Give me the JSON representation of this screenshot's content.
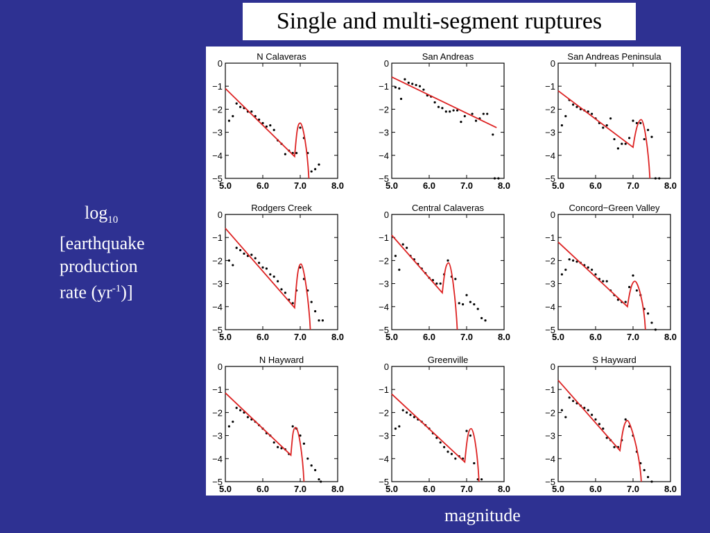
{
  "page": {
    "title": "Single and multi-segment ruptures",
    "ylabel": {
      "line1_base": "log",
      "line1_sub": "10",
      "line2": "[earthquake",
      "line3": "production",
      "line4_a": "rate (yr",
      "line4_sup": "-1",
      "line4_b": ")]"
    },
    "xlabel": "magnitude",
    "colors": {
      "background": "#2e3192",
      "fit_line": "#dd2222",
      "points": "#000000"
    }
  },
  "chart_data": [
    {
      "type": "scatter",
      "title": "N  Calaveras",
      "xlim": [
        5.0,
        8.0
      ],
      "ylim": [
        -5,
        0
      ],
      "xticks": [
        "5.0",
        "6.0",
        "7.0",
        "8.0"
      ],
      "yticks": [
        "0",
        "−1",
        "−2",
        "−3",
        "−4",
        "−5"
      ],
      "points": [
        [
          5.1,
          -2.5
        ],
        [
          5.2,
          -2.3
        ],
        [
          5.3,
          -1.75
        ],
        [
          5.4,
          -1.9
        ],
        [
          5.5,
          -1.95
        ],
        [
          5.6,
          -2.1
        ],
        [
          5.7,
          -2.1
        ],
        [
          5.8,
          -2.3
        ],
        [
          5.9,
          -2.45
        ],
        [
          6.0,
          -2.6
        ],
        [
          6.1,
          -2.75
        ],
        [
          6.2,
          -2.7
        ],
        [
          6.3,
          -2.9
        ],
        [
          6.4,
          -3.35
        ],
        [
          6.5,
          -3.5
        ],
        [
          6.6,
          -3.95
        ],
        [
          6.7,
          -3.8
        ],
        [
          6.8,
          -3.9
        ],
        [
          6.9,
          -3.9
        ],
        [
          7.0,
          -2.8
        ],
        [
          7.1,
          -3.25
        ],
        [
          7.2,
          -3.9
        ],
        [
          7.3,
          -4.7
        ],
        [
          7.4,
          -4.6
        ],
        [
          7.5,
          -4.4
        ]
      ],
      "fit": {
        "start": [
          5.0,
          -1.1
        ],
        "break": [
          6.85,
          -4.05
        ],
        "peak": [
          7.0,
          -2.6
        ],
        "end": [
          7.23,
          -5.0
        ]
      }
    },
    {
      "type": "scatter",
      "title": "San  Andreas",
      "xlim": [
        5.0,
        8.0
      ],
      "ylim": [
        -5,
        0
      ],
      "xticks": [
        "5.0",
        "6.0",
        "7.0",
        "8.0"
      ],
      "yticks": [
        "0",
        "−1",
        "−2",
        "−3",
        "−4",
        "−5"
      ],
      "points": [
        [
          5.1,
          -1.05
        ],
        [
          5.2,
          -1.1
        ],
        [
          5.25,
          -1.55
        ],
        [
          5.35,
          -0.7
        ],
        [
          5.45,
          -0.85
        ],
        [
          5.55,
          -0.9
        ],
        [
          5.65,
          -0.95
        ],
        [
          5.75,
          -1.0
        ],
        [
          5.85,
          -1.15
        ],
        [
          5.95,
          -1.4
        ],
        [
          6.05,
          -1.45
        ],
        [
          6.15,
          -1.7
        ],
        [
          6.25,
          -1.9
        ],
        [
          6.35,
          -1.95
        ],
        [
          6.45,
          -2.1
        ],
        [
          6.55,
          -2.1
        ],
        [
          6.65,
          -2.05
        ],
        [
          6.75,
          -2.05
        ],
        [
          6.85,
          -2.55
        ],
        [
          6.95,
          -2.3
        ],
        [
          7.15,
          -2.2
        ],
        [
          7.25,
          -2.5
        ],
        [
          7.35,
          -2.4
        ],
        [
          7.45,
          -2.2
        ],
        [
          7.55,
          -2.2
        ],
        [
          7.7,
          -3.1
        ],
        [
          7.75,
          -5.0
        ],
        [
          7.85,
          -5.0
        ]
      ],
      "fit": {
        "start": [
          5.0,
          -0.6
        ],
        "break": null,
        "peak": null,
        "end": [
          7.8,
          -2.8
        ]
      }
    },
    {
      "type": "scatter",
      "title": "San  Andreas  Peninsula",
      "xlim": [
        5.0,
        8.0
      ],
      "ylim": [
        -5,
        0
      ],
      "xticks": [
        "5.0",
        "6.0",
        "7.0",
        "8.0"
      ],
      "yticks": [
        "0",
        "−1",
        "−2",
        "−3",
        "−4",
        "−5"
      ],
      "points": [
        [
          5.1,
          -2.7
        ],
        [
          5.2,
          -2.3
        ],
        [
          5.3,
          -1.6
        ],
        [
          5.4,
          -1.8
        ],
        [
          5.5,
          -1.9
        ],
        [
          5.6,
          -2.0
        ],
        [
          5.7,
          -2.05
        ],
        [
          5.8,
          -2.1
        ],
        [
          5.9,
          -2.2
        ],
        [
          6.0,
          -2.4
        ],
        [
          6.1,
          -2.6
        ],
        [
          6.2,
          -2.8
        ],
        [
          6.3,
          -2.7
        ],
        [
          6.4,
          -2.4
        ],
        [
          6.5,
          -3.3
        ],
        [
          6.6,
          -3.7
        ],
        [
          6.7,
          -3.5
        ],
        [
          6.8,
          -3.5
        ],
        [
          6.9,
          -3.25
        ],
        [
          7.0,
          -2.5
        ],
        [
          7.1,
          -2.6
        ],
        [
          7.2,
          -2.6
        ],
        [
          7.3,
          -3.3
        ],
        [
          7.4,
          -2.9
        ],
        [
          7.5,
          -3.2
        ],
        [
          7.6,
          -5.0
        ],
        [
          7.7,
          -5.0
        ]
      ],
      "fit": {
        "start": [
          5.0,
          -1.2
        ],
        "break": [
          7.0,
          -3.65
        ],
        "peak": [
          7.22,
          -2.45
        ],
        "end": [
          7.45,
          -5.0
        ]
      }
    },
    {
      "type": "scatter",
      "title": "Rodgers  Creek",
      "xlim": [
        5.0,
        8.0
      ],
      "ylim": [
        -5,
        0
      ],
      "xticks": [
        "5.0",
        "6.0",
        "7.0",
        "8.0"
      ],
      "yticks": [
        "0",
        "−1",
        "−2",
        "−3",
        "−4",
        "−5"
      ],
      "points": [
        [
          5.1,
          -2.0
        ],
        [
          5.2,
          -2.2
        ],
        [
          5.3,
          -1.45
        ],
        [
          5.4,
          -1.55
        ],
        [
          5.5,
          -1.7
        ],
        [
          5.6,
          -1.8
        ],
        [
          5.7,
          -1.75
        ],
        [
          5.8,
          -1.9
        ],
        [
          5.9,
          -2.1
        ],
        [
          6.0,
          -2.3
        ],
        [
          6.1,
          -2.35
        ],
        [
          6.2,
          -2.6
        ],
        [
          6.3,
          -2.7
        ],
        [
          6.4,
          -2.9
        ],
        [
          6.5,
          -3.25
        ],
        [
          6.6,
          -3.4
        ],
        [
          6.7,
          -3.7
        ],
        [
          6.8,
          -3.85
        ],
        [
          6.9,
          -3.3
        ],
        [
          7.0,
          -2.3
        ],
        [
          7.1,
          -2.8
        ],
        [
          7.2,
          -3.3
        ],
        [
          7.3,
          -3.8
        ],
        [
          7.4,
          -4.2
        ],
        [
          7.5,
          -4.6
        ],
        [
          7.6,
          -4.6
        ]
      ],
      "fit": {
        "start": [
          5.0,
          -0.6
        ],
        "break": [
          6.85,
          -4.05
        ],
        "peak": [
          7.02,
          -2.15
        ],
        "end": [
          7.27,
          -5.0
        ]
      }
    },
    {
      "type": "scatter",
      "title": "Central  Calaveras",
      "xlim": [
        5.0,
        8.0
      ],
      "ylim": [
        -5,
        0
      ],
      "xticks": [
        "5.0",
        "6.0",
        "7.0",
        "8.0"
      ],
      "yticks": [
        "0",
        "−1",
        "−2",
        "−3",
        "−4",
        "−5"
      ],
      "points": [
        [
          5.1,
          -1.8
        ],
        [
          5.2,
          -2.4
        ],
        [
          5.3,
          -1.3
        ],
        [
          5.4,
          -1.45
        ],
        [
          5.5,
          -1.8
        ],
        [
          5.6,
          -1.95
        ],
        [
          5.7,
          -2.15
        ],
        [
          5.8,
          -2.35
        ],
        [
          5.9,
          -2.55
        ],
        [
          6.0,
          -2.75
        ],
        [
          6.1,
          -2.85
        ],
        [
          6.2,
          -3.0
        ],
        [
          6.3,
          -3.0
        ],
        [
          6.4,
          -2.6
        ],
        [
          6.5,
          -2.0
        ],
        [
          6.6,
          -2.7
        ],
        [
          6.7,
          -2.8
        ],
        [
          6.8,
          -3.85
        ],
        [
          6.9,
          -3.9
        ],
        [
          7.0,
          -3.5
        ],
        [
          7.1,
          -3.8
        ],
        [
          7.2,
          -3.9
        ],
        [
          7.3,
          -4.1
        ],
        [
          7.4,
          -4.5
        ],
        [
          7.5,
          -4.6
        ]
      ],
      "fit": {
        "start": [
          5.0,
          -0.9
        ],
        "break": [
          6.35,
          -3.4
        ],
        "peak": [
          6.52,
          -2.1
        ],
        "end": [
          6.75,
          -5.0
        ]
      }
    },
    {
      "type": "scatter",
      "title": "Concord−Green  Valley",
      "xlim": [
        5.0,
        8.0
      ],
      "ylim": [
        -5,
        0
      ],
      "xticks": [
        "5.0",
        "6.0",
        "7.0",
        "8.0"
      ],
      "yticks": [
        "0",
        "−1",
        "−2",
        "−3",
        "−4",
        "−5"
      ],
      "points": [
        [
          5.1,
          -2.6
        ],
        [
          5.2,
          -2.4
        ],
        [
          5.3,
          -1.95
        ],
        [
          5.4,
          -2.0
        ],
        [
          5.5,
          -2.05
        ],
        [
          5.6,
          -2.1
        ],
        [
          5.7,
          -2.2
        ],
        [
          5.8,
          -2.3
        ],
        [
          5.9,
          -2.4
        ],
        [
          6.0,
          -2.6
        ],
        [
          6.1,
          -2.8
        ],
        [
          6.2,
          -2.9
        ],
        [
          6.3,
          -2.9
        ],
        [
          6.4,
          -3.3
        ],
        [
          6.5,
          -3.5
        ],
        [
          6.6,
          -3.7
        ],
        [
          6.7,
          -3.8
        ],
        [
          6.8,
          -3.8
        ],
        [
          6.9,
          -3.15
        ],
        [
          7.0,
          -2.65
        ],
        [
          7.1,
          -3.3
        ],
        [
          7.2,
          -3.5
        ],
        [
          7.3,
          -4.1
        ],
        [
          7.4,
          -4.3
        ],
        [
          7.5,
          -4.7
        ],
        [
          7.6,
          -5.0
        ]
      ],
      "fit": {
        "start": [
          5.0,
          -1.2
        ],
        "break": [
          6.85,
          -4.0
        ],
        "peak": [
          7.05,
          -2.9
        ],
        "end": [
          7.33,
          -5.0
        ]
      }
    },
    {
      "type": "scatter",
      "title": "N  Hayward",
      "xlim": [
        5.0,
        8.0
      ],
      "ylim": [
        -5,
        0
      ],
      "xticks": [
        "5.0",
        "6.0",
        "7.0",
        "8.0"
      ],
      "yticks": [
        "0",
        "−1",
        "−2",
        "−3",
        "−4",
        "−5"
      ],
      "points": [
        [
          5.1,
          -2.6
        ],
        [
          5.2,
          -2.4
        ],
        [
          5.3,
          -1.8
        ],
        [
          5.4,
          -1.9
        ],
        [
          5.5,
          -2.0
        ],
        [
          5.6,
          -2.2
        ],
        [
          5.7,
          -2.3
        ],
        [
          5.8,
          -2.4
        ],
        [
          5.9,
          -2.55
        ],
        [
          6.0,
          -2.7
        ],
        [
          6.1,
          -2.9
        ],
        [
          6.2,
          -3.0
        ],
        [
          6.3,
          -3.3
        ],
        [
          6.4,
          -3.5
        ],
        [
          6.5,
          -3.55
        ],
        [
          6.6,
          -3.6
        ],
        [
          6.7,
          -3.8
        ],
        [
          6.8,
          -2.6
        ],
        [
          6.9,
          -2.7
        ],
        [
          7.0,
          -3.0
        ],
        [
          7.1,
          -3.35
        ],
        [
          7.2,
          -4.0
        ],
        [
          7.3,
          -4.3
        ],
        [
          7.4,
          -4.5
        ],
        [
          7.5,
          -4.9
        ],
        [
          7.55,
          -5.0
        ]
      ],
      "fit": {
        "start": [
          5.0,
          -1.15
        ],
        "break": [
          6.75,
          -3.85
        ],
        "peak": [
          6.88,
          -2.65
        ],
        "end": [
          7.1,
          -5.0
        ]
      }
    },
    {
      "type": "scatter",
      "title": "Greenville",
      "xlim": [
        5.0,
        8.0
      ],
      "ylim": [
        -5,
        0
      ],
      "xticks": [
        "5.0",
        "6.0",
        "7.0",
        "8.0"
      ],
      "yticks": [
        "0",
        "−1",
        "−2",
        "−3",
        "−4",
        "−5"
      ],
      "points": [
        [
          5.1,
          -2.7
        ],
        [
          5.2,
          -2.6
        ],
        [
          5.3,
          -1.9
        ],
        [
          5.4,
          -2.0
        ],
        [
          5.5,
          -2.1
        ],
        [
          5.6,
          -2.2
        ],
        [
          5.7,
          -2.3
        ],
        [
          5.8,
          -2.4
        ],
        [
          5.9,
          -2.55
        ],
        [
          6.0,
          -2.7
        ],
        [
          6.1,
          -2.9
        ],
        [
          6.2,
          -3.1
        ],
        [
          6.3,
          -3.3
        ],
        [
          6.4,
          -3.5
        ],
        [
          6.5,
          -3.7
        ],
        [
          6.6,
          -3.8
        ],
        [
          6.7,
          -4.0
        ],
        [
          6.8,
          -3.9
        ],
        [
          6.9,
          -4.0
        ],
        [
          7.0,
          -2.8
        ],
        [
          7.1,
          -3.0
        ],
        [
          7.2,
          -4.2
        ],
        [
          7.3,
          -4.9
        ],
        [
          7.4,
          -4.9
        ]
      ],
      "fit": {
        "start": [
          5.0,
          -1.2
        ],
        "break": [
          6.95,
          -4.15
        ],
        "peak": [
          7.12,
          -2.7
        ],
        "end": [
          7.33,
          -5.0
        ]
      }
    },
    {
      "type": "scatter",
      "title": "S  Hayward",
      "xlim": [
        5.0,
        8.0
      ],
      "ylim": [
        -5,
        0
      ],
      "xticks": [
        "5.0",
        "6.0",
        "7.0",
        "8.0"
      ],
      "yticks": [
        "0",
        "−1",
        "−2",
        "−3",
        "−4",
        "−5"
      ],
      "points": [
        [
          5.1,
          -1.9
        ],
        [
          5.2,
          -2.2
        ],
        [
          5.3,
          -1.35
        ],
        [
          5.4,
          -1.5
        ],
        [
          5.5,
          -1.6
        ],
        [
          5.6,
          -1.7
        ],
        [
          5.7,
          -1.8
        ],
        [
          5.8,
          -1.9
        ],
        [
          5.9,
          -2.1
        ],
        [
          6.0,
          -2.3
        ],
        [
          6.1,
          -2.5
        ],
        [
          6.2,
          -2.7
        ],
        [
          6.3,
          -3.1
        ],
        [
          6.4,
          -3.2
        ],
        [
          6.5,
          -3.5
        ],
        [
          6.6,
          -3.5
        ],
        [
          6.7,
          -3.2
        ],
        [
          6.8,
          -2.3
        ],
        [
          6.9,
          -2.6
        ],
        [
          7.0,
          -3.0
        ],
        [
          7.1,
          -3.7
        ],
        [
          7.2,
          -4.2
        ],
        [
          7.3,
          -4.5
        ],
        [
          7.4,
          -4.8
        ],
        [
          7.5,
          -5.0
        ]
      ],
      "fit": {
        "start": [
          5.0,
          -0.6
        ],
        "break": [
          6.65,
          -3.65
        ],
        "peak": [
          6.85,
          -2.35
        ],
        "end": [
          7.22,
          -5.0
        ]
      }
    }
  ]
}
